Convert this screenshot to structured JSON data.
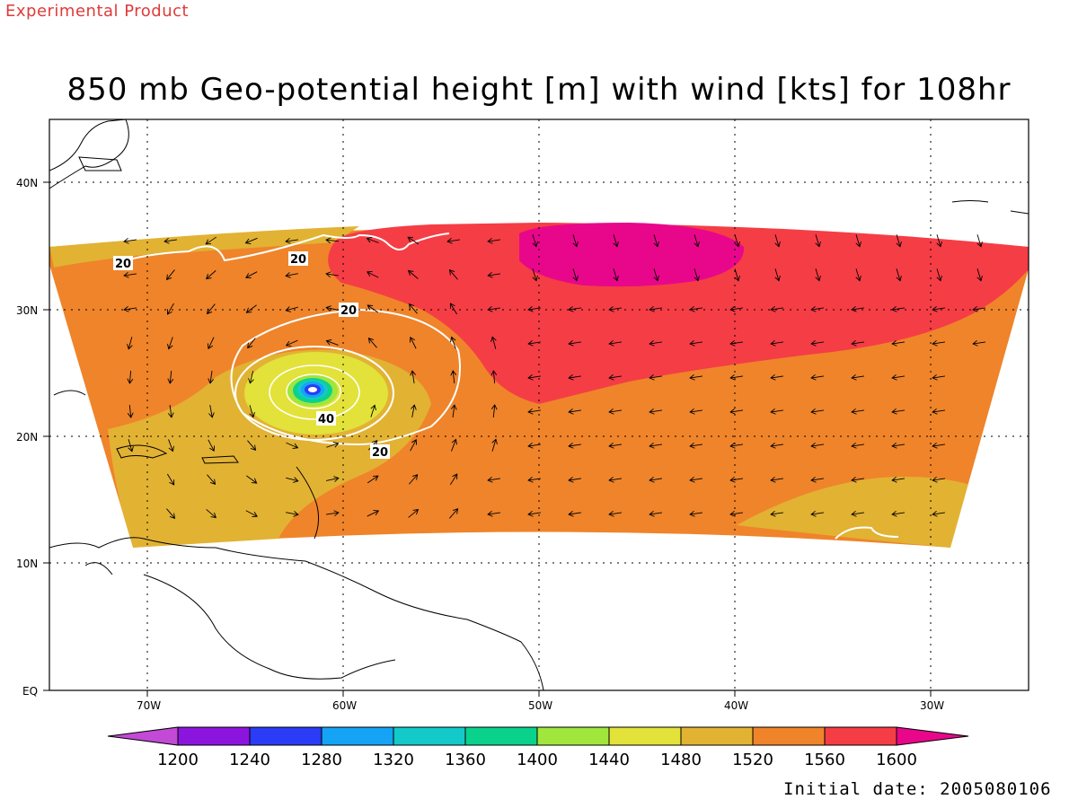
{
  "header": {
    "experimental_label": "Experimental Product",
    "title": "850 mb Geo-potential height [m] with wind [kts] for 108hr",
    "initial_date": "Initial date: 2005080106"
  },
  "map": {
    "lon_ticks": [
      "70W",
      "60W",
      "50W",
      "40W",
      "30W"
    ],
    "lat_ticks": [
      "40N",
      "30N",
      "20N",
      "10N",
      "EQ"
    ],
    "contour_labels": [
      "20",
      "20",
      "20",
      "40",
      "20"
    ],
    "grid": "dotted",
    "field_colors": {
      "1480": "#e2e23a",
      "1520": "#e2b233",
      "1560": "#ef842a",
      "1600": "#f53d45",
      "above_1600": "#e8078a"
    }
  },
  "colorbar": {
    "labels": [
      "1200",
      "1240",
      "1280",
      "1320",
      "1360",
      "1400",
      "1440",
      "1480",
      "1520",
      "1560",
      "1600"
    ],
    "colors": [
      "#c34ad6",
      "#8c15de",
      "#2a3cf5",
      "#14a3f5",
      "#14c9c9",
      "#0ad28c",
      "#a0e63c",
      "#e2e23a",
      "#e2b233",
      "#ef842a",
      "#f53d45",
      "#e8078a"
    ]
  }
}
